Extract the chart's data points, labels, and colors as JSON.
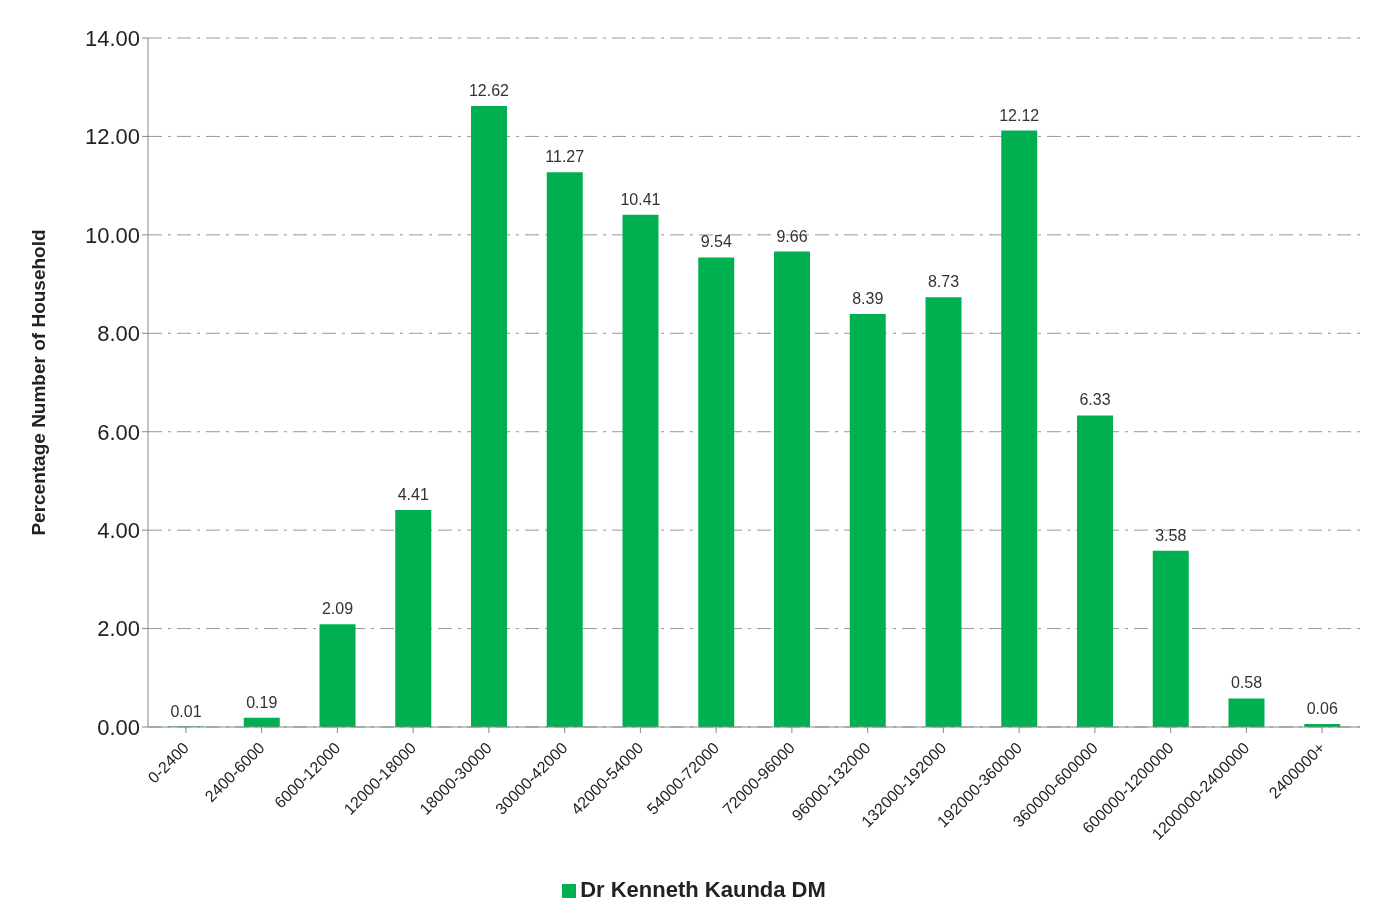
{
  "chart_data": {
    "type": "bar",
    "ylabel": "Percentage Number of Household",
    "categories": [
      "0-2400",
      "2400-6000",
      "6000-12000",
      "12000-18000",
      "18000-30000",
      "30000-42000",
      "42000-54000",
      "54000-72000",
      "72000-96000",
      "96000-132000",
      "132000-192000",
      "192000-360000",
      "360000-600000",
      "600000-1200000",
      "1200000-2400000",
      "2400000+"
    ],
    "series": [
      {
        "name": "Dr Kenneth Kaunda DM",
        "color": "#00b050",
        "values": [
          0.01,
          0.19,
          2.09,
          4.41,
          12.62,
          11.27,
          10.41,
          9.54,
          9.66,
          8.39,
          8.73,
          12.12,
          6.33,
          3.58,
          0.58,
          0.06
        ]
      }
    ],
    "ylim": [
      0,
      14
    ],
    "yticks": [
      {
        "value": 0,
        "label": "0.00"
      },
      {
        "value": 2,
        "label": "2.00"
      },
      {
        "value": 4,
        "label": "4.00"
      },
      {
        "value": 6,
        "label": "6.00"
      },
      {
        "value": 8,
        "label": "8.00"
      },
      {
        "value": 10,
        "label": "10.00"
      },
      {
        "value": 12,
        "label": "12.00"
      },
      {
        "value": 14,
        "label": "14.00"
      }
    ],
    "grid": "y",
    "legend": "bottom",
    "data_labels": true
  }
}
